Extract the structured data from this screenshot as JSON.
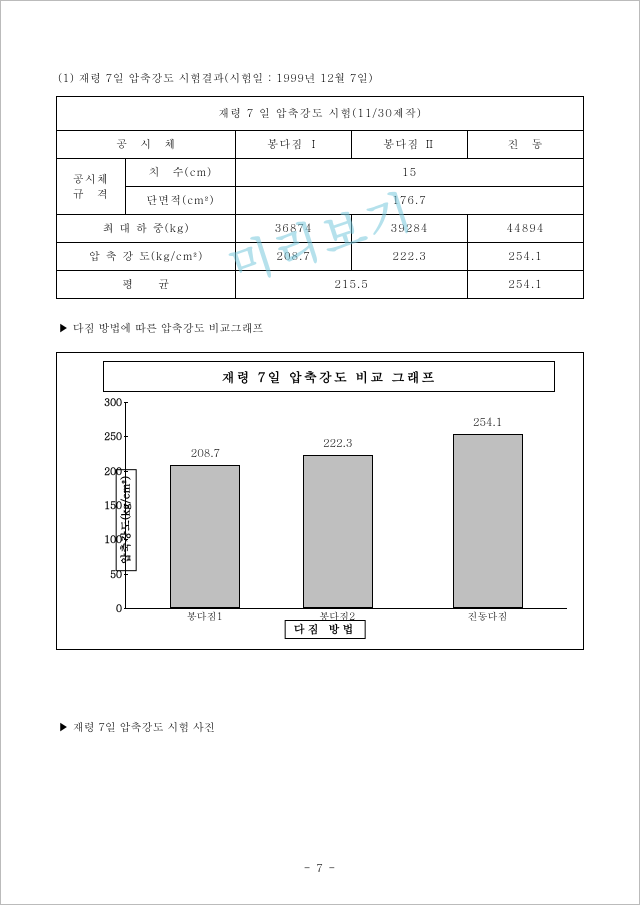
{
  "heading1": "(1) 재령 7일 압축강도 시험결과(시험일 : 1999년 12월 7일)",
  "watermark": "미리보기",
  "table": {
    "title": "재령 7 일 압축강도 시험(11/30제작)",
    "col_specimen": "공　시　체",
    "col_bongdajim1": "봉다짐 Ⅰ",
    "col_bongdajim2": "봉다짐 Ⅱ",
    "col_jindong": "진　동",
    "spec_group": "공시체\n규　격",
    "spec_size_label": "치　수(cm)",
    "spec_size_value": "15",
    "spec_area_label": "단면적(cm²)",
    "spec_area_value": "176.7",
    "row_maxload": "최 대 하 중(kg)",
    "maxload": [
      "36874",
      "39284",
      "44894"
    ],
    "row_strength": "압 축 강 도(kg/cm²)",
    "strength": [
      "208.7",
      "222.3",
      "254.1"
    ],
    "row_avg": "평　　균",
    "avg": [
      "215.5",
      "254.1"
    ]
  },
  "bullet1": "▶ 다짐 방법에 따른 압축강도 비교그래프",
  "bullet2": "▶ 재령 7일 압축강도 시험 사진",
  "chart": {
    "title": "재령 7일 압축강도 비교 그래프",
    "y_label": "압축강도(kg/cm²)",
    "x_label": "다짐 방법",
    "y_max": 300,
    "y_ticks": [
      "0",
      "50",
      "100",
      "150",
      "200",
      "250",
      "300"
    ],
    "categories": [
      "봉다짐1",
      "봉다짐2",
      "진동다짐"
    ],
    "values": [
      208.7,
      222.3,
      254.1
    ],
    "value_labels": [
      "208.7",
      "222.3",
      "254.1"
    ],
    "bar_color": "#bfbfbf",
    "bar_positions_pct": [
      18,
      48,
      82
    ]
  },
  "page_number": "- 7 -"
}
